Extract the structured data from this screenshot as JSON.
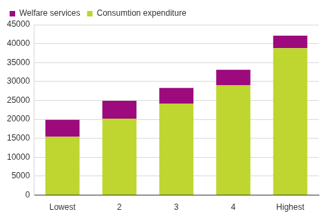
{
  "chart_data": {
    "type": "bar",
    "stacked": true,
    "categories": [
      "Lowest",
      "2",
      "3",
      "4",
      "Highest"
    ],
    "series": [
      {
        "name": "Consumtion expenditure",
        "color": "#bed62f",
        "values": [
          15400,
          20200,
          24200,
          29000,
          38800
        ]
      },
      {
        "name": "Welfare services",
        "color": "#9c0a7d",
        "values": [
          4500,
          4700,
          4100,
          4100,
          3300
        ]
      }
    ],
    "ylim": [
      0,
      45000
    ],
    "yticks": [
      0,
      5000,
      10000,
      15000,
      20000,
      25000,
      30000,
      35000,
      40000,
      45000
    ],
    "grid": true,
    "legend": "top-left"
  }
}
